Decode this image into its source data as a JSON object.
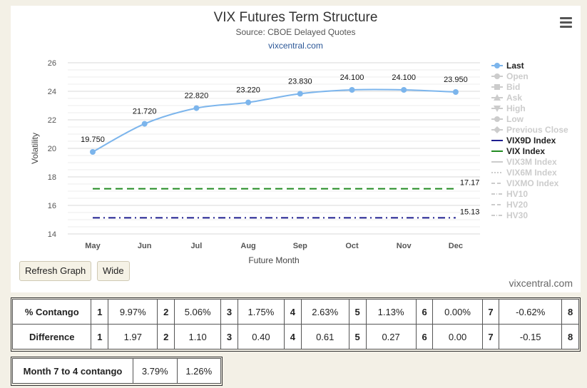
{
  "header": {
    "title": "VIX Futures Term Structure",
    "subtitle": "Source: CBOE Delayed Quotes",
    "link": "vixcentral.com"
  },
  "buttons": {
    "refresh": "Refresh Graph",
    "wide": "Wide"
  },
  "credit": "vixcentral.com",
  "chart_data": {
    "type": "line",
    "categories": [
      "May",
      "Jun",
      "Jul",
      "Aug",
      "Sep",
      "Oct",
      "Nov",
      "Dec"
    ],
    "xlabel": "Future Month",
    "ylabel": "Volatility",
    "ylim": [
      14,
      26
    ],
    "yticks": [
      14,
      16,
      18,
      20,
      22,
      24,
      26
    ],
    "series": [
      {
        "name": "Last",
        "values": [
          19.75,
          21.72,
          22.82,
          23.22,
          23.83,
          24.1,
          24.1,
          23.95
        ],
        "labels": [
          "19.750",
          "21.720",
          "22.820",
          "23.220",
          "23.830",
          "24.100",
          "24.100",
          "23.950"
        ],
        "color": "#7cb5ec",
        "style": "solid-markers"
      },
      {
        "name": "VIX9D Index",
        "values": [
          15.13,
          15.13,
          15.13,
          15.13,
          15.13,
          15.13,
          15.13,
          15.13
        ],
        "end_label": "15.13",
        "color": "#1f1f8f",
        "style": "dash-dot"
      },
      {
        "name": "VIX Index",
        "values": [
          17.17,
          17.17,
          17.17,
          17.17,
          17.17,
          17.17,
          17.17,
          17.17
        ],
        "end_label": "17.17",
        "color": "#228B22",
        "style": "dashed"
      }
    ],
    "legend": {
      "placement": "right",
      "items": [
        {
          "name": "Last",
          "active": true,
          "symbol": "circle",
          "color": "#7cb5ec"
        },
        {
          "name": "Open",
          "active": false,
          "symbol": "circle"
        },
        {
          "name": "Bid",
          "active": false,
          "symbol": "square"
        },
        {
          "name": "Ask",
          "active": false,
          "symbol": "triangle-up"
        },
        {
          "name": "High",
          "active": false,
          "symbol": "triangle-down"
        },
        {
          "name": "Low",
          "active": false,
          "symbol": "circle"
        },
        {
          "name": "Previous Close",
          "active": false,
          "symbol": "diamond"
        },
        {
          "name": "VIX9D Index",
          "active": true,
          "symbol": "line",
          "color": "#1f1f8f"
        },
        {
          "name": "VIX Index",
          "active": true,
          "symbol": "line",
          "color": "#228B22"
        },
        {
          "name": "VIX3M Index",
          "active": false,
          "symbol": "line"
        },
        {
          "name": "VIX6M Index",
          "active": false,
          "symbol": "dotted"
        },
        {
          "name": "VIXMO Index",
          "active": false,
          "symbol": "dashed"
        },
        {
          "name": "HV10",
          "active": false,
          "symbol": "dash-dot"
        },
        {
          "name": "HV20",
          "active": false,
          "symbol": "dashed"
        },
        {
          "name": "HV30",
          "active": false,
          "symbol": "dash-dot"
        }
      ]
    }
  },
  "contango_table": {
    "rows": [
      {
        "label": "% Contango",
        "cells": [
          "1",
          "9.97%",
          "2",
          "5.06%",
          "3",
          "1.75%",
          "4",
          "2.63%",
          "5",
          "1.13%",
          "6",
          "0.00%",
          "7",
          "-0.62%",
          "8"
        ]
      },
      {
        "label": "Difference",
        "cells": [
          "1",
          "1.97",
          "2",
          "1.10",
          "3",
          "0.40",
          "4",
          "0.61",
          "5",
          "0.27",
          "6",
          "0.00",
          "7",
          "-0.15",
          "8"
        ]
      }
    ]
  },
  "month_table": {
    "label": "Month 7 to 4 contango",
    "values": [
      "3.79%",
      "1.26%"
    ]
  }
}
